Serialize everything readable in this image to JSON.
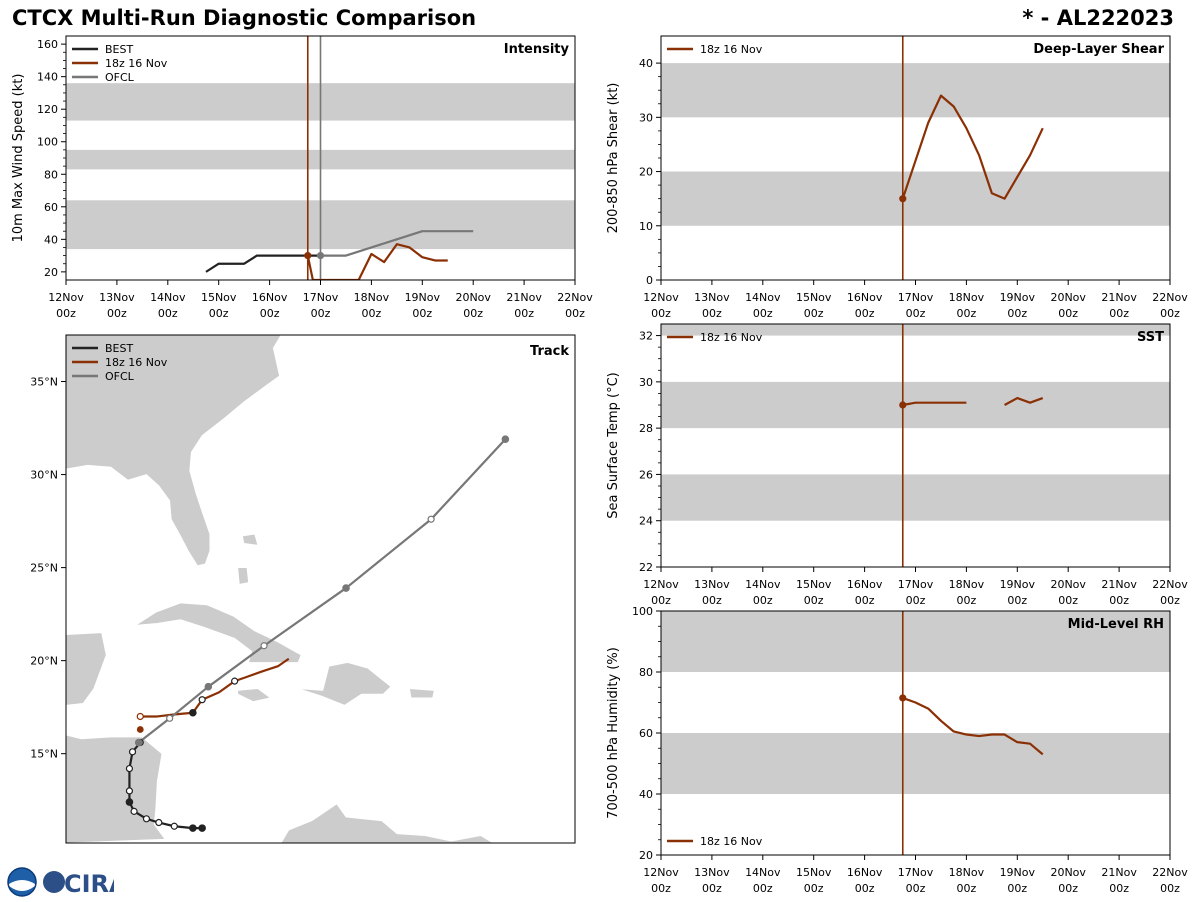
{
  "header": {
    "title": "CTCX Multi-Run Diagnostic Comparison",
    "storm_id": "* - AL222023"
  },
  "colors": {
    "best": "#222222",
    "run": "#8b3005",
    "ofcl": "#777777",
    "band": "#cccccc",
    "land": "#cccccc"
  },
  "time_axis": {
    "ticks": [
      "12Nov",
      "13Nov",
      "14Nov",
      "15Nov",
      "16Nov",
      "17Nov",
      "18Nov",
      "19Nov",
      "20Nov",
      "21Nov",
      "22Nov"
    ],
    "sublabel": "00z",
    "range_days": [
      12,
      22
    ]
  },
  "logo": {
    "text": "CIRA"
  },
  "chart_data": [
    {
      "id": "intensity",
      "type": "line",
      "title": "Intensity",
      "ylabel": "10m Max Wind Speed (kt)",
      "ylim": [
        15,
        165
      ],
      "yticks": [
        20,
        40,
        60,
        80,
        100,
        120,
        140,
        160
      ],
      "bands": [
        [
          34,
          64
        ],
        [
          83,
          95
        ],
        [
          113,
          136
        ]
      ],
      "init_time": 16.75,
      "ofcl_time": 17.0,
      "legend": [
        "BEST",
        "18z 16 Nov",
        "OFCL"
      ],
      "series": [
        {
          "name": "BEST",
          "color": "best",
          "x": [
            14.75,
            15.0,
            15.25,
            15.5,
            15.75,
            16.0,
            16.25,
            16.5,
            16.75,
            17.0
          ],
          "y": [
            20,
            25,
            25,
            25,
            30,
            30,
            30,
            30,
            30,
            30
          ]
        },
        {
          "name": "18z 16 Nov",
          "color": "run",
          "x": [
            16.75,
            16.85,
            17.6,
            17.75,
            18.0,
            18.25,
            18.5,
            18.75,
            19.0,
            19.25,
            19.5
          ],
          "y": [
            30,
            15,
            15,
            15,
            31,
            26,
            37,
            35,
            29,
            27,
            27
          ]
        },
        {
          "name": "OFCL",
          "color": "ofcl",
          "x": [
            17.0,
            17.5,
            18.0,
            18.5,
            19.0,
            20.0
          ],
          "y": [
            30,
            30,
            35,
            40,
            45,
            45
          ]
        }
      ]
    },
    {
      "id": "shear",
      "type": "line",
      "title": "Deep-Layer Shear",
      "ylabel": "200-850 hPa Shear (kt)",
      "ylim": [
        0,
        45
      ],
      "yticks": [
        0,
        10,
        20,
        30,
        40
      ],
      "bands": [
        [
          10,
          20
        ],
        [
          30,
          40
        ]
      ],
      "init_time": 16.75,
      "legend": [
        "18z 16 Nov"
      ],
      "series": [
        {
          "name": "18z 16 Nov",
          "color": "run",
          "x": [
            16.75,
            17.0,
            17.25,
            17.5,
            17.75,
            18.0,
            18.25,
            18.5,
            18.75,
            19.0,
            19.25,
            19.5
          ],
          "y": [
            15,
            22,
            29,
            34,
            32,
            28,
            23,
            16,
            15,
            19,
            23,
            28
          ]
        }
      ]
    },
    {
      "id": "sst",
      "type": "line",
      "title": "SST",
      "ylabel": "Sea Surface Temp (°C)",
      "ylim": [
        22,
        32.5
      ],
      "yticks": [
        22,
        24,
        26,
        28,
        30,
        32
      ],
      "bands": [
        [
          24,
          26
        ],
        [
          28,
          30
        ],
        [
          32,
          32.5
        ]
      ],
      "init_time": 16.75,
      "legend": [
        "18z 16 Nov"
      ],
      "series": [
        {
          "name": "18z 16 Nov",
          "color": "run",
          "segments": [
            {
              "x": [
                16.75,
                17.0,
                17.5,
                18.0
              ],
              "y": [
                29.0,
                29.1,
                29.1,
                29.1
              ]
            },
            {
              "x": [
                18.75,
                19.0,
                19.25,
                19.5
              ],
              "y": [
                29.0,
                29.3,
                29.1,
                29.3
              ]
            }
          ]
        }
      ]
    },
    {
      "id": "rh",
      "type": "line",
      "title": "Mid-Level RH",
      "ylabel": "700-500 hPa Humidity (%)",
      "ylim": [
        20,
        100
      ],
      "yticks": [
        20,
        40,
        60,
        80,
        100
      ],
      "bands": [
        [
          40,
          60
        ],
        [
          80,
          100
        ]
      ],
      "init_time": 16.75,
      "legend": [
        "18z 16 Nov"
      ],
      "series": [
        {
          "name": "18z 16 Nov",
          "color": "run",
          "x": [
            16.75,
            17.0,
            17.25,
            17.5,
            17.75,
            18.0,
            18.25,
            18.5,
            18.75,
            19.0,
            19.25,
            19.5
          ],
          "y": [
            71.5,
            70,
            68,
            64,
            60.5,
            59.5,
            59,
            59.5,
            59.5,
            57,
            56.5,
            53
          ]
        }
      ]
    },
    {
      "id": "track",
      "type": "scatter",
      "title": "Track",
      "lon_range": [
        -89.4,
        -56.5
      ],
      "lat_range": [
        10.2,
        37.5
      ],
      "lat_ticks": [
        15,
        20,
        25,
        30,
        35
      ],
      "lat_labels": [
        "15°N",
        "20°N",
        "25°N",
        "30°N",
        "35°N"
      ],
      "legend": [
        "BEST",
        "18z 16 Nov",
        "OFCL"
      ],
      "series": [
        {
          "name": "BEST",
          "color": "best",
          "lon": [
            -80.6,
            -81.2,
            -82.4,
            -83.4,
            -84.2,
            -85.0,
            -85.3,
            -85.3,
            -85.3,
            -85.1,
            -84.6
          ],
          "lat": [
            11.0,
            11.0,
            11.1,
            11.3,
            11.5,
            11.9,
            12.4,
            13.0,
            14.2,
            15.1,
            15.6
          ],
          "filled": [
            true,
            true,
            false,
            false,
            false,
            false,
            true,
            false,
            false,
            false,
            false
          ]
        },
        {
          "name": "18z 16 Nov",
          "color": "run",
          "lon": [
            -84.6,
            -83.5,
            -82.5,
            -81.2,
            -80.6,
            -79.5,
            -78.5,
            -77.8,
            -76.8,
            -75.7,
            -75.0
          ],
          "lat": [
            17.0,
            17.0,
            17.1,
            17.2,
            17.9,
            18.3,
            18.9,
            19.1,
            19.4,
            19.7,
            20.1
          ],
          "filled": [
            false,
            false,
            false,
            true,
            false,
            false,
            false,
            false,
            false,
            false,
            false
          ]
        },
        {
          "name": "OFCL",
          "color": "ofcl",
          "lon": [
            -84.7,
            -82.7,
            -80.2,
            -76.6,
            -71.3,
            -65.8,
            -61.0
          ],
          "lat": [
            15.6,
            16.9,
            18.6,
            20.8,
            23.9,
            27.6,
            31.9
          ],
          "filled": [
            true,
            false,
            true,
            false,
            true,
            false,
            true
          ]
        }
      ]
    }
  ]
}
